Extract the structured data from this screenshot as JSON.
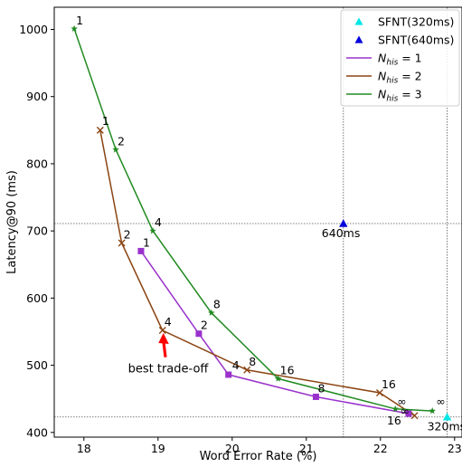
{
  "chart_data": {
    "type": "line",
    "xlabel": "Word Error Rate (%)",
    "ylabel": "Latency@90 (ms)",
    "xlim": [
      17.6,
      23.1
    ],
    "ylim": [
      393,
      1033
    ],
    "x_ticks": [
      18,
      19,
      20,
      21,
      22,
      23
    ],
    "y_ticks": [
      400,
      500,
      600,
      700,
      800,
      900,
      1000
    ],
    "grid": false,
    "legend_placement": "top-right",
    "reference_lines": [
      {
        "orientation": "horizontal",
        "value": 711
      },
      {
        "orientation": "horizontal",
        "value": 423
      },
      {
        "orientation": "vertical",
        "value": 21.5
      },
      {
        "orientation": "vertical",
        "value": 22.9
      }
    ],
    "series": [
      {
        "name": "N_his = 1",
        "legend_name": "N",
        "legend_sub": "his",
        "legend_rest": " = 1",
        "color": "#9932cc",
        "marker": "square",
        "points": [
          {
            "x": 18.77,
            "y": 670,
            "label": "1"
          },
          {
            "x": 19.55,
            "y": 547,
            "label": "2"
          },
          {
            "x": 19.95,
            "y": 486,
            "label": "4"
          },
          {
            "x": 21.13,
            "y": 453,
            "label": "8"
          },
          {
            "x": 22.38,
            "y": 428,
            "label": "16"
          }
        ]
      },
      {
        "name": "N_his = 2",
        "legend_name": "N",
        "legend_sub": "his",
        "legend_rest": " = 2",
        "color": "#8b4513",
        "marker": "x",
        "points": [
          {
            "x": 18.22,
            "y": 850,
            "label": "1"
          },
          {
            "x": 18.51,
            "y": 682,
            "label": "2"
          },
          {
            "x": 19.06,
            "y": 552,
            "label": "4"
          },
          {
            "x": 20.2,
            "y": 493,
            "label": "8"
          },
          {
            "x": 21.99,
            "y": 459,
            "label": "16"
          },
          {
            "x": 22.46,
            "y": 425,
            "label": "∞"
          }
        ]
      },
      {
        "name": "N_his = 3",
        "legend_name": "N",
        "legend_sub": "his",
        "legend_rest": " = 3",
        "color": "#228b22",
        "marker": "star",
        "points": [
          {
            "x": 17.87,
            "y": 1001,
            "label": "1"
          },
          {
            "x": 18.43,
            "y": 821,
            "label": "2"
          },
          {
            "x": 18.93,
            "y": 700,
            "label": "4"
          },
          {
            "x": 19.72,
            "y": 578,
            "label": "8"
          },
          {
            "x": 20.62,
            "y": 480,
            "label": "16"
          },
          {
            "x": 22.2,
            "y": 435,
            "label": "∞"
          },
          {
            "x": 22.7,
            "y": 432,
            "label": "∞"
          }
        ]
      }
    ],
    "reference_points": [
      {
        "name": "SFNT(320ms)",
        "x": 22.9,
        "y": 423,
        "color": "#00e5e5",
        "marker": "triangle",
        "label": "320ms"
      },
      {
        "name": "SFNT(640ms)",
        "x": 21.5,
        "y": 711,
        "color": "#0000dd",
        "marker": "triangle",
        "label": "640ms"
      }
    ],
    "annotation": {
      "text": "best trade-off",
      "arrow_tip": {
        "x": 19.06,
        "y": 552
      },
      "arrow_tail": {
        "x": 19.1,
        "y": 512
      },
      "color": "#ff0000"
    }
  }
}
